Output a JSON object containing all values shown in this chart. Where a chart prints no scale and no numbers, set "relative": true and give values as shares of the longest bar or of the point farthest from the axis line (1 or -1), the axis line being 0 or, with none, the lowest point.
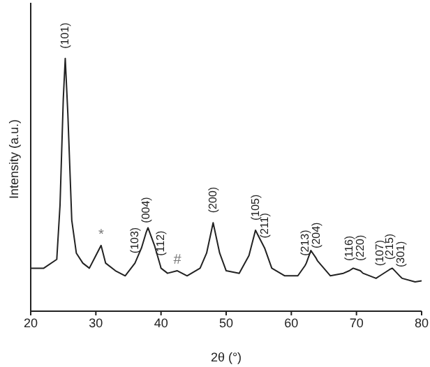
{
  "chart_data": {
    "type": "line",
    "relative": true,
    "xlabel": "2θ (°)",
    "ylabel": "Intensity (a.u.)",
    "x": [
      20,
      22,
      24,
      24.5,
      25,
      25.3,
      25.7,
      26.3,
      27,
      28,
      29,
      30,
      30.8,
      31.5,
      33,
      34.5,
      36,
      37,
      37.7,
      38,
      39,
      39.9,
      40,
      41,
      42.5,
      44,
      46,
      47,
      48,
      49,
      50,
      52,
      53.5,
      54.5,
      55.5,
      55.9,
      57,
      59,
      61,
      62.1,
      62.3,
      63,
      63.8,
      64,
      66,
      68,
      68.9,
      69.5,
      70.6,
      71,
      73,
      73.6,
      75.1,
      75.5,
      76.8,
      77,
      79,
      80
    ],
    "series": [
      {
        "color": "#222222",
        "values": [
          0.17,
          0.17,
          0.205,
          0.42,
          0.84,
          1.0,
          0.78,
          0.36,
          0.23,
          0.19,
          0.17,
          0.22,
          0.26,
          0.19,
          0.16,
          0.14,
          0.19,
          0.25,
          0.31,
          0.33,
          0.26,
          0.18,
          0.17,
          0.15,
          0.16,
          0.14,
          0.17,
          0.23,
          0.35,
          0.23,
          0.16,
          0.15,
          0.22,
          0.32,
          0.27,
          0.25,
          0.17,
          0.14,
          0.14,
          0.18,
          0.19,
          0.24,
          0.21,
          0.2,
          0.14,
          0.15,
          0.16,
          0.17,
          0.16,
          0.15,
          0.13,
          0.14,
          0.165,
          0.17,
          0.135,
          0.13,
          0.116,
          0.12
        ]
      }
    ],
    "xlim": [
      20,
      80
    ],
    "xticks": [
      20,
      30,
      40,
      50,
      60,
      70,
      80
    ],
    "grid": false,
    "legend": false,
    "marker": "none",
    "line_style": "solid",
    "annotations": [
      {
        "text": "(101)",
        "x": 25.3,
        "y": 1.0
      },
      {
        "text": "*",
        "x": 30.8,
        "y": 0.26
      },
      {
        "text": "(103)",
        "x": 36,
        "y": 0.19
      },
      {
        "text": "(004)",
        "x": 37.7,
        "y": 0.31
      },
      {
        "text": "(112)",
        "x": 39.9,
        "y": 0.18
      },
      {
        "text": "#",
        "x": 42.5,
        "y": 0.16
      },
      {
        "text": "(200)",
        "x": 48,
        "y": 0.35
      },
      {
        "text": "(105)",
        "x": 54.5,
        "y": 0.32
      },
      {
        "text": "(211)",
        "x": 55.9,
        "y": 0.25
      },
      {
        "text": "(213)",
        "x": 62.1,
        "y": 0.18
      },
      {
        "text": "(204)",
        "x": 63.8,
        "y": 0.21
      },
      {
        "text": "(116)",
        "x": 68.9,
        "y": 0.16
      },
      {
        "text": "(220)",
        "x": 70.6,
        "y": 0.16
      },
      {
        "text": "(107)",
        "x": 73.6,
        "y": 0.14
      },
      {
        "text": "(215)",
        "x": 75.1,
        "y": 0.165
      },
      {
        "text": "(301)",
        "x": 76.8,
        "y": 0.135
      }
    ]
  }
}
